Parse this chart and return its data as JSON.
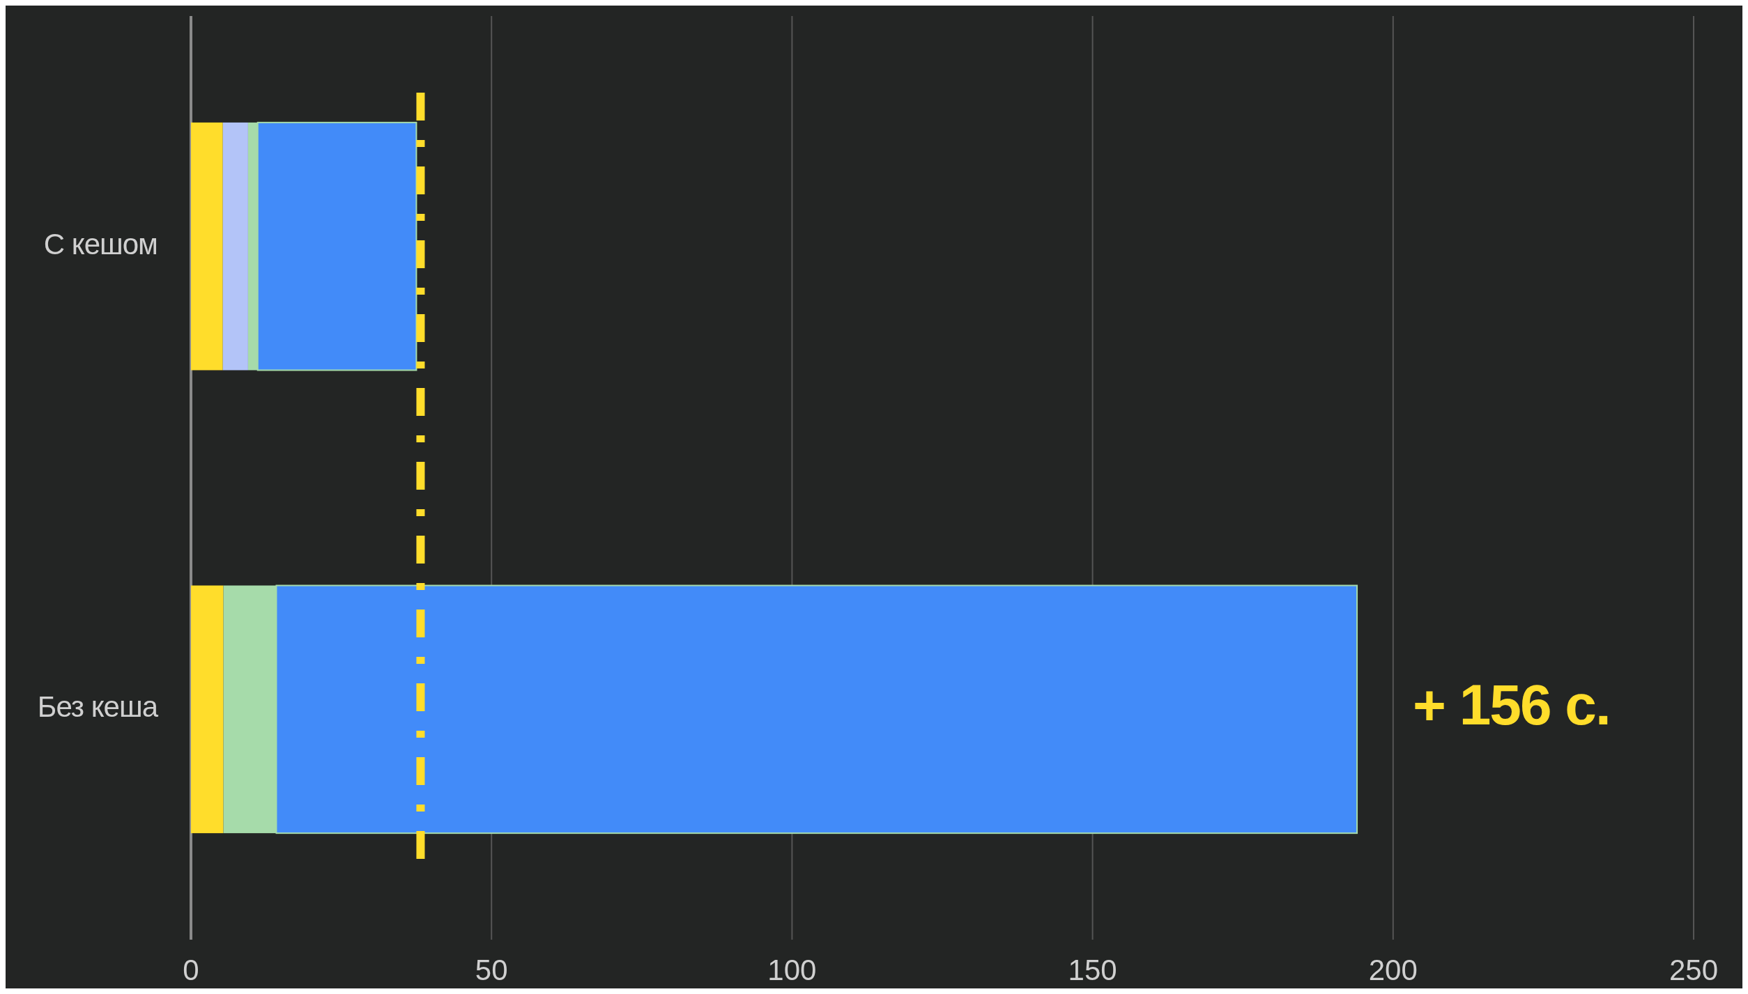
{
  "chart_data": {
    "type": "bar",
    "orientation": "horizontal",
    "stacked": true,
    "categories": [
      "С кешом",
      "Без кеша"
    ],
    "series": [
      {
        "color": "#ffdd2b",
        "values": [
          5.3,
          5.4
        ]
      },
      {
        "color": "#b3c4f8",
        "values": [
          4.2,
          null
        ]
      },
      {
        "color": "#a6dbaa",
        "values": [
          1.6,
          8.8
        ]
      },
      {
        "color": "#428bf9",
        "values": [
          26.4,
          179.8
        ]
      }
    ],
    "xlim": [
      0,
      250
    ],
    "xticks": [
      0,
      50,
      100,
      150,
      200,
      250
    ],
    "grid": "x",
    "ref_lines": [
      {
        "axis": "x",
        "value": 38.2,
        "color": "#ffdd2b",
        "line_style": "dashed"
      }
    ],
    "annotations": [
      {
        "text": "+ 156 с.",
        "x": 194,
        "y": "Без кеша"
      }
    ]
  }
}
